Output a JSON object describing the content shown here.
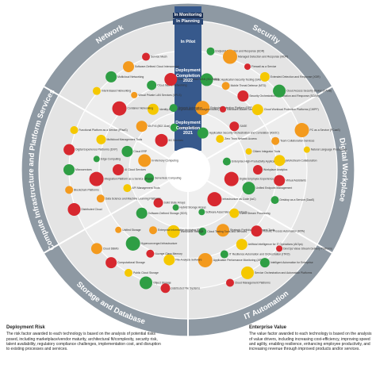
{
  "chart_data": {
    "type": "radar",
    "stages": [
      "In Monitoring",
      "In Planning",
      "In Pilot",
      "Deployment Completion 2022",
      "Deployment Completion 2021"
    ],
    "sectors": [
      {
        "name": "Security",
        "nodes": [
          {
            "label": "Application Security Orchestration and Correlation (ASOC)",
            "color": "#2e9e44"
          },
          {
            "label": "Zero Trust Network Access",
            "color": "#f5c800"
          },
          {
            "label": "Endpoint Protection Platform (EPP)",
            "color": "#f39a1e"
          },
          {
            "label": "Hardware-Based Security",
            "color": "#d7282f"
          },
          {
            "label": "SASE",
            "color": "#d7282f"
          },
          {
            "label": "Static Application Security Testing (SAST)",
            "color": "#2e9e44"
          },
          {
            "label": "Mobile Threat Defense (MTD)",
            "color": "#f39a1e"
          },
          {
            "label": "Security Orchestration, Automation and Response (SOAR)",
            "color": "#d7282f"
          },
          {
            "label": "Cloud Workload Protection Platforms (CWPP)",
            "color": "#f5c800"
          },
          {
            "label": "Endpoint Detection and Response (EDR)",
            "color": "#2e9e44"
          },
          {
            "label": "Managed Detection and Response (MDR)",
            "color": "#f39a1e"
          },
          {
            "label": "Firewall as a Service",
            "color": "#d7282f"
          },
          {
            "label": "Extended Detection and Response (XDR)",
            "color": "#f5c800"
          },
          {
            "label": "Cloud Access Security Broker (CASB)",
            "color": "#2e9e44"
          }
        ]
      },
      {
        "name": "Digital Workplace",
        "nodes": [
          {
            "label": "Enterprise High-Productivity Application PaaS",
            "color": "#2e9e44"
          },
          {
            "label": "Digital Employee Experience",
            "color": "#d7282f"
          },
          {
            "label": "Citizen Integrator Tools",
            "color": "#f5c800"
          },
          {
            "label": "Workplace Analytics",
            "color": "#d7282f"
          },
          {
            "label": "Unified Endpoint Management",
            "color": "#2e9e44"
          },
          {
            "label": "Team Collaboration Services",
            "color": "#f39a1e"
          },
          {
            "label": "Workstream Collaboration",
            "color": "#f5c800"
          },
          {
            "label": "Virtual Assistants",
            "color": "#d7282f"
          },
          {
            "label": "Desktop as a Service (DaaS)",
            "color": "#2e9e44"
          },
          {
            "label": "PC as a Service (PCaaS)",
            "color": "#f39a1e"
          },
          {
            "label": "Natural Language Processing",
            "color": "#f5c800"
          }
        ]
      },
      {
        "name": "IT Automation",
        "nodes": [
          {
            "label": "Infrastructure as Code (IaC)",
            "color": "#d7282f"
          },
          {
            "label": "Software Asset Management Tools",
            "color": "#2e9e44"
          },
          {
            "label": "Event Stream Processing",
            "color": "#f5c800"
          },
          {
            "label": "Strategic Portfolio Management Tools",
            "color": "#f39a1e"
          },
          {
            "label": "Cloud Testing Tools and Services",
            "color": "#2e9e44"
          },
          {
            "label": "Robotic Process Automation (RPA)",
            "color": "#d7282f"
          },
          {
            "label": "Artificial Intelligence for IT Operations (AIOps)",
            "color": "#f5c800"
          },
          {
            "label": "IT Resilience Automation and Orchestration (ITRO)",
            "color": "#2e9e44"
          },
          {
            "label": "Application Performance Monitoring (APM)",
            "color": "#f39a1e"
          },
          {
            "label": "DevOps Value Stream Delivery Platforms",
            "color": "#d7282f"
          },
          {
            "label": "Intelligent Automation for Enterprise",
            "color": "#2e9e44"
          },
          {
            "label": "Service Orchestration and Automation Platforms",
            "color": "#f5c800"
          },
          {
            "label": "Cloud Management Platforms",
            "color": "#d7282f"
          }
        ]
      },
      {
        "name": "Storage and Database",
        "nodes": [
          {
            "label": "Hybrid Storage Arrays",
            "color": "#2e9e44"
          },
          {
            "label": "Solid State Arrays",
            "color": "#d7282f"
          },
          {
            "label": "Immutable Storage",
            "color": "#f5c800"
          },
          {
            "label": "Enterprise Information Archiving (EIA)",
            "color": "#f39a1e"
          },
          {
            "label": "Software-Defined Storage (SDS)",
            "color": "#2e9e44"
          },
          {
            "label": "File Analysis Software",
            "color": "#f5c800"
          },
          {
            "label": "Storage Class Memory",
            "color": "#d7282f"
          },
          {
            "label": "Hyperconverged Infrastructure",
            "color": "#2e9e44"
          },
          {
            "label": "Unified Storage",
            "color": "#f39a1e"
          },
          {
            "label": "Distributed File Systems",
            "color": "#d7282f"
          },
          {
            "label": "Object Storage",
            "color": "#2e9e44"
          },
          {
            "label": "Public Cloud Storage",
            "color": "#f5c800"
          },
          {
            "label": "Computational Storage",
            "color": "#d7282f"
          },
          {
            "label": "Cloud DBMS",
            "color": "#f39a1e"
          }
        ]
      },
      {
        "name": "Compute Infrastructure and Platform Services",
        "nodes": [
          {
            "label": "Serverless Computing",
            "color": "#2e9e44"
          },
          {
            "label": "In-Memory Computing",
            "color": "#f39a1e"
          },
          {
            "label": "API Management Tools",
            "color": "#f5c800"
          },
          {
            "label": "AI Cloud Services",
            "color": "#d7282f"
          },
          {
            "label": "Cloud ERP",
            "color": "#2e9e44"
          },
          {
            "label": "Data Science and Machine Learning Platforms",
            "color": "#f39a1e"
          },
          {
            "label": "Integration Platform as a Service (iPaaS)",
            "color": "#d7282f"
          },
          {
            "label": "Edge Computing",
            "color": "#2e9e44"
          },
          {
            "label": "Multicloud Management Tools",
            "color": "#f5c800"
          },
          {
            "label": "Distributed Cloud",
            "color": "#d7282f"
          },
          {
            "label": "Blockchain Platforms",
            "color": "#f39a1e"
          },
          {
            "label": "Microservices",
            "color": "#2e9e44"
          },
          {
            "label": "Digital Experience Platforms (DXP)",
            "color": "#d7282f"
          },
          {
            "label": "Functional Platform as a Service (fPaaS)",
            "color": "#f5c800"
          }
        ]
      },
      {
        "name": "Network",
        "nodes": [
          {
            "label": "5G Services",
            "color": "#d7282f"
          },
          {
            "label": "NFV and SDN",
            "color": "#2e9e44"
          },
          {
            "label": "Wi-Fi 6 (802.11ax)",
            "color": "#f39a1e"
          },
          {
            "label": "Identity-Based Segmentation (Microsegmentation)",
            "color": "#f5c800"
          },
          {
            "label": "Network Automation",
            "color": "#2e9e44"
          },
          {
            "label": "Container Networking",
            "color": "#d7282f"
          },
          {
            "label": "Virtual Private LAN Services (VPLS)",
            "color": "#f39a1e"
          },
          {
            "label": "Cloud Native Networking",
            "color": "#2e9e44"
          },
          {
            "label": "Software-Defined WAN (SD-WAN)",
            "color": "#d7282f"
          },
          {
            "label": "Intent-Based Networking",
            "color": "#f5c800"
          },
          {
            "label": "Multicloud Networking",
            "color": "#2e9e44"
          },
          {
            "label": "Software-Defined Cloud Interconnect",
            "color": "#f39a1e"
          },
          {
            "label": "Service Mesh",
            "color": "#d7282f"
          }
        ]
      }
    ],
    "legend": {
      "risk_title": "Deployment Risk",
      "risk_text": "The risk factor awarded to each technology is based on the analysis of potential risks posed, including marketplace/vendor maturity, architectural fit/complexity, security risk, talent availability, regulatory compliance challenges, implementation cost, and disruption to existing processes and services.",
      "value_title": "Enterprise Value",
      "value_text": "The value factor awarded to each technology is based on the analysis of value drivers, including increasing cost-efficiency, improving speed and agility, enabling resilience, enhancing employee productivity, and increasing revenue through improved products and/or services."
    }
  }
}
